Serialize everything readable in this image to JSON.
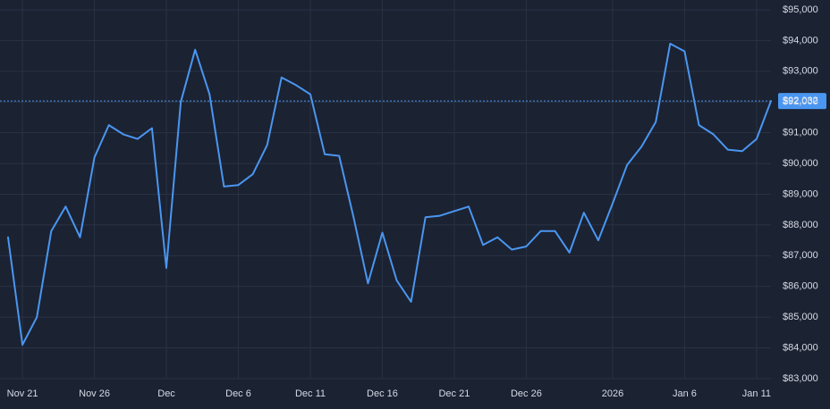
{
  "chart_data": {
    "type": "line",
    "title": "",
    "xlabel": "",
    "ylabel": "",
    "y_tick_labels": [
      "$83,000",
      "$84,000",
      "$85,000",
      "$86,000",
      "$87,000",
      "$88,000",
      "$89,000",
      "$90,000",
      "$91,000",
      "$92,000",
      "$93,000",
      "$94,000",
      "$95,000"
    ],
    "y_tick_values": [
      83000,
      84000,
      85000,
      86000,
      87000,
      88000,
      89000,
      90000,
      91000,
      92000,
      93000,
      94000,
      95000
    ],
    "x_tick_labels": [
      "Nov 21",
      "Nov 26",
      "Dec",
      "Dec 6",
      "Dec 11",
      "Dec 16",
      "Dec 21",
      "Dec 26",
      "2026",
      "Jan 6",
      "Jan 11"
    ],
    "x_tick_dates": [
      "2025-11-21",
      "2025-11-26",
      "2025-12-01",
      "2025-12-06",
      "2025-12-11",
      "2025-12-16",
      "2025-12-21",
      "2025-12-26",
      "2026-01-01",
      "2026-01-06",
      "2026-01-11"
    ],
    "ylim": [
      83000,
      95000
    ],
    "xlim": [
      "2025-11-20",
      "2026-01-12"
    ],
    "grid": true,
    "current_value": 92032,
    "current_value_label": "$92,032",
    "colors": {
      "background": "#1b2232",
      "grid": "#2a3344",
      "line": "#4a96f0",
      "text": "#d6dbe5"
    },
    "series": [
      {
        "x": [
          "2025-11-20",
          "2025-11-21",
          "2025-11-22",
          "2025-11-23",
          "2025-11-24",
          "2025-11-25",
          "2025-11-26",
          "2025-11-27",
          "2025-11-28",
          "2025-11-29",
          "2025-11-30",
          "2025-12-01",
          "2025-12-02",
          "2025-12-03",
          "2025-12-04",
          "2025-12-05",
          "2025-12-06",
          "2025-12-07",
          "2025-12-08",
          "2025-12-09",
          "2025-12-10",
          "2025-12-11",
          "2025-12-12",
          "2025-12-13",
          "2025-12-14",
          "2025-12-15",
          "2025-12-16",
          "2025-12-17",
          "2025-12-18",
          "2025-12-19",
          "2025-12-20",
          "2025-12-21",
          "2025-12-22",
          "2025-12-23",
          "2025-12-24",
          "2025-12-25",
          "2025-12-26",
          "2025-12-27",
          "2025-12-28",
          "2025-12-29",
          "2025-12-30",
          "2025-12-31",
          "2026-01-01",
          "2026-01-02",
          "2026-01-03",
          "2026-01-04",
          "2026-01-05",
          "2026-01-06",
          "2026-01-07",
          "2026-01-08",
          "2026-01-09",
          "2026-01-10",
          "2026-01-11",
          "2026-01-12"
        ],
        "values": [
          87600,
          84100,
          85000,
          87800,
          88600,
          87600,
          90200,
          91250,
          90950,
          90800,
          91150,
          86600,
          92000,
          93700,
          92250,
          89250,
          89300,
          89650,
          90600,
          92800,
          92550,
          92250,
          90300,
          90250,
          88250,
          86100,
          87750,
          86200,
          85500,
          88250,
          88300,
          88450,
          88600,
          87350,
          87600,
          87200,
          87300,
          87800,
          87800,
          87100,
          88400,
          87500,
          88700,
          89950,
          90550,
          91350,
          93900,
          93650,
          91250,
          90950,
          90450,
          90400,
          90800,
          92032
        ]
      }
    ]
  }
}
